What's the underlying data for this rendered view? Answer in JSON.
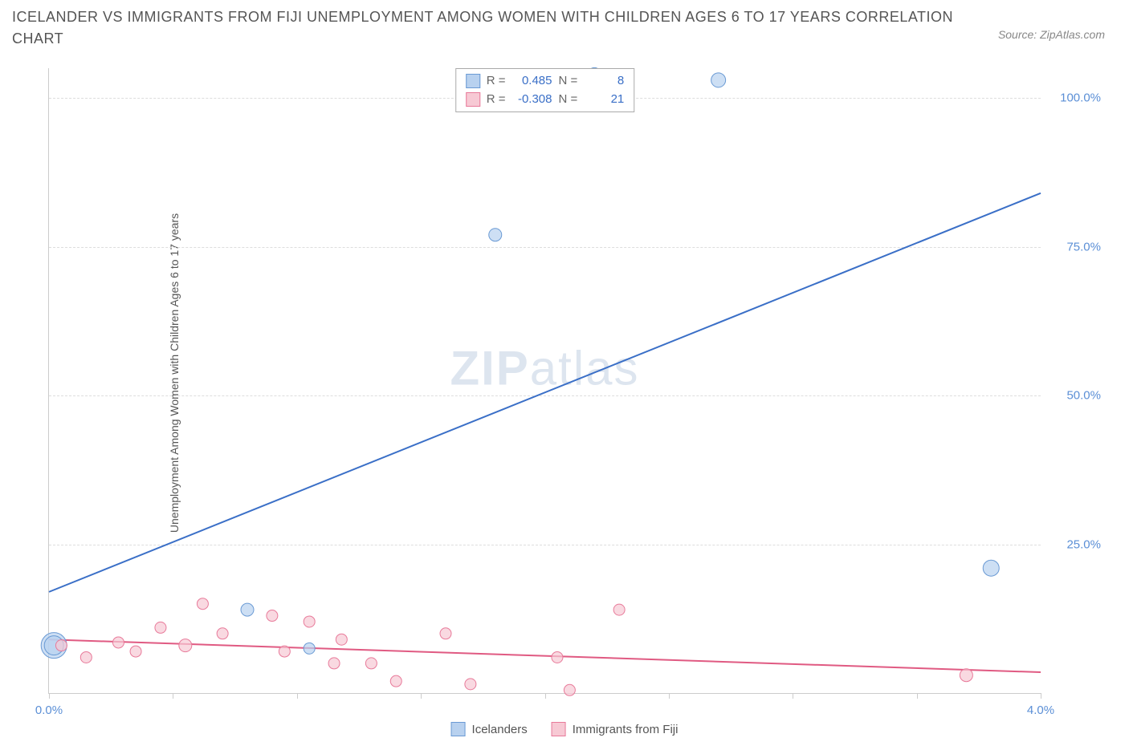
{
  "title": "ICELANDER VS IMMIGRANTS FROM FIJI UNEMPLOYMENT AMONG WOMEN WITH CHILDREN AGES 6 TO 17 YEARS CORRELATION CHART",
  "source": "Source: ZipAtlas.com",
  "watermark_bold": "ZIP",
  "watermark_light": "atlas",
  "y_axis_label": "Unemployment Among Women with Children Ages 6 to 17 years",
  "chart": {
    "type": "scatter",
    "background_color": "#ffffff",
    "grid_color": "#dddddd",
    "axis_color": "#cccccc",
    "xlim": [
      0.0,
      4.0
    ],
    "ylim": [
      0.0,
      105.0
    ],
    "x_ticks": [
      0.0,
      0.5,
      1.0,
      1.5,
      2.0,
      2.5,
      3.0,
      3.5,
      4.0
    ],
    "x_tick_labels": {
      "0": "0.0%",
      "4": "4.0%"
    },
    "y_ticks": [
      25.0,
      50.0,
      75.0,
      100.0
    ],
    "y_tick_labels": [
      "25.0%",
      "50.0%",
      "75.0%",
      "100.0%"
    ],
    "tick_label_color": "#5b8fd6",
    "tick_label_fontsize": 15,
    "series": [
      {
        "name": "Icelanders",
        "marker_fill": "#b8d1ef",
        "marker_stroke": "#6a9ad4",
        "line_color": "#3a6fc7",
        "line_width": 2,
        "R": "0.485",
        "N": "8",
        "trend": {
          "x1": 0.0,
          "y1": 17.0,
          "x2": 4.0,
          "y2": 84.0
        },
        "points": [
          {
            "x": 0.02,
            "y": 8.0,
            "r": 16
          },
          {
            "x": 0.02,
            "y": 8.0,
            "r": 12
          },
          {
            "x": 0.8,
            "y": 14.0,
            "r": 8
          },
          {
            "x": 1.05,
            "y": 7.5,
            "r": 7
          },
          {
            "x": 1.8,
            "y": 77.0,
            "r": 8
          },
          {
            "x": 2.2,
            "y": 104.0,
            "r": 8
          },
          {
            "x": 2.7,
            "y": 103.0,
            "r": 9
          },
          {
            "x": 3.8,
            "y": 21.0,
            "r": 10
          }
        ]
      },
      {
        "name": "Immigrants from Fiji",
        "marker_fill": "#f7c9d4",
        "marker_stroke": "#e87a9a",
        "line_color": "#e05a82",
        "line_width": 2,
        "R": "-0.308",
        "N": "21",
        "trend": {
          "x1": 0.0,
          "y1": 9.0,
          "x2": 4.0,
          "y2": 3.5
        },
        "points": [
          {
            "x": 0.05,
            "y": 8.0,
            "r": 7
          },
          {
            "x": 0.15,
            "y": 6.0,
            "r": 7
          },
          {
            "x": 0.28,
            "y": 8.5,
            "r": 7
          },
          {
            "x": 0.35,
            "y": 7.0,
            "r": 7
          },
          {
            "x": 0.45,
            "y": 11.0,
            "r": 7
          },
          {
            "x": 0.55,
            "y": 8.0,
            "r": 8
          },
          {
            "x": 0.62,
            "y": 15.0,
            "r": 7
          },
          {
            "x": 0.7,
            "y": 10.0,
            "r": 7
          },
          {
            "x": 0.9,
            "y": 13.0,
            "r": 7
          },
          {
            "x": 0.95,
            "y": 7.0,
            "r": 7
          },
          {
            "x": 1.05,
            "y": 12.0,
            "r": 7
          },
          {
            "x": 1.15,
            "y": 5.0,
            "r": 7
          },
          {
            "x": 1.18,
            "y": 9.0,
            "r": 7
          },
          {
            "x": 1.3,
            "y": 5.0,
            "r": 7
          },
          {
            "x": 1.4,
            "y": 2.0,
            "r": 7
          },
          {
            "x": 1.6,
            "y": 10.0,
            "r": 7
          },
          {
            "x": 1.7,
            "y": 1.5,
            "r": 7
          },
          {
            "x": 2.05,
            "y": 6.0,
            "r": 7
          },
          {
            "x": 2.1,
            "y": 0.5,
            "r": 7
          },
          {
            "x": 2.3,
            "y": 14.0,
            "r": 7
          },
          {
            "x": 3.7,
            "y": 3.0,
            "r": 8
          }
        ]
      }
    ]
  },
  "legend_labels": {
    "R_prefix": "R =",
    "N_prefix": "N =",
    "series1": "Icelanders",
    "series2": "Immigrants from Fiji"
  }
}
